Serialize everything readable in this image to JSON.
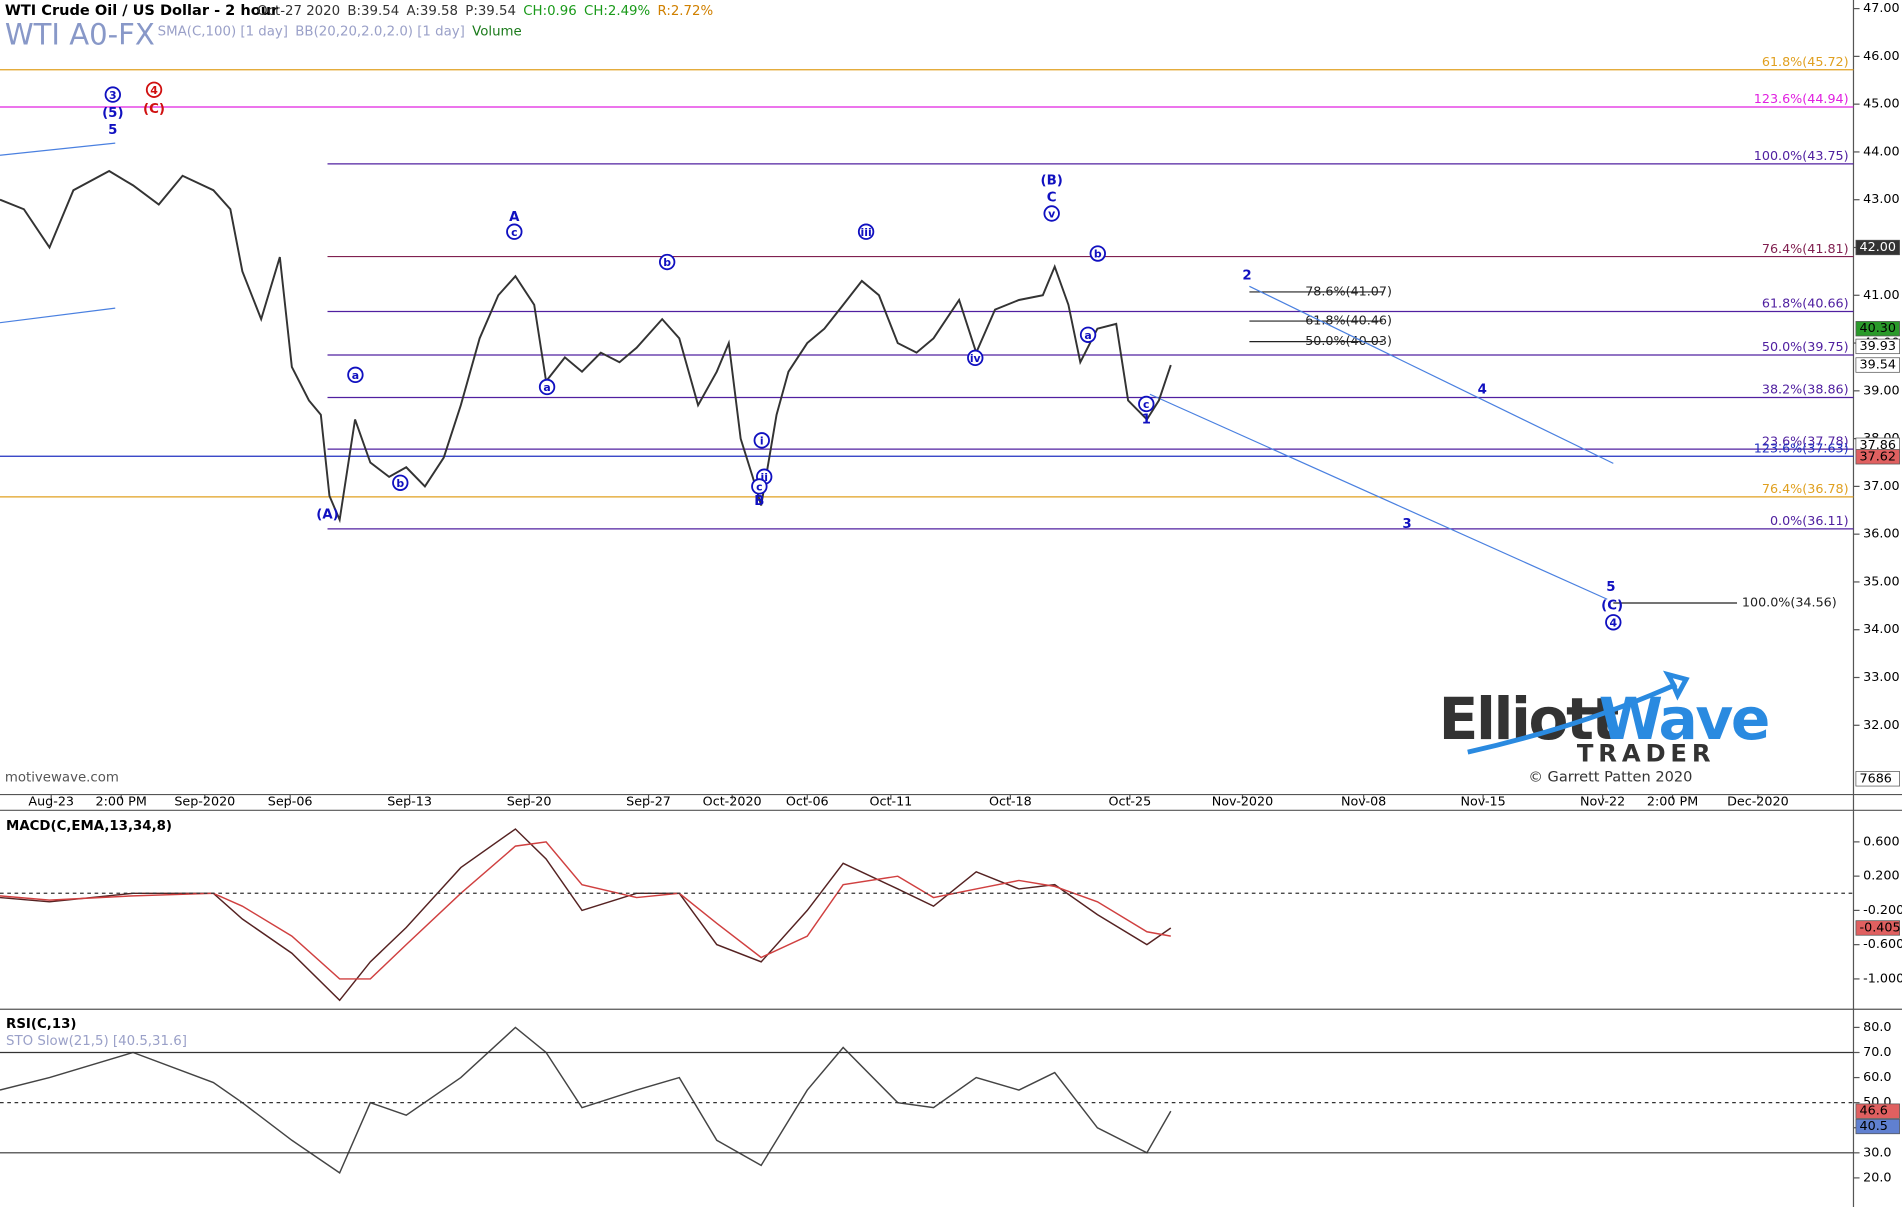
{
  "chart_data": [
    {
      "type": "line",
      "title": "WTI Crude Oil / US Dollar - 2 hour",
      "symbol": "WTI A0-FX",
      "quote": [
        "Oct-27 2020",
        "B:39.54",
        "A:39.58",
        "P:39.54",
        "CH:0.96",
        "CH:2.49%",
        "R:2.72%"
      ],
      "indicators": [
        "SMA(C,100) [1 day]",
        "BB(20,20,2.0,2.0) [1 day]",
        "Volume"
      ],
      "source": "motivewave.com",
      "branding": {
        "name1": "Elliott",
        "name2": "Wave",
        "name3": "TRADER",
        "copyright": "© Garrett Patten 2020"
      },
      "x": [
        233.0,
        234.4,
        235.9,
        237.3,
        239.4,
        240.8,
        242.3,
        243.7,
        245.5,
        246.5,
        247.2,
        248.3,
        249.4,
        250.1,
        251.1,
        251.8,
        252.3,
        252.9,
        253.8,
        254.7,
        255.8,
        256.8,
        257.9,
        259.0,
        260.0,
        261.1,
        262.2,
        263.2,
        264.3,
        265.0,
        266.1,
        267.1,
        268.2,
        269.3,
        270.3,
        271.8,
        272.8,
        273.9,
        275.0,
        275.7,
        276.4,
        277.1,
        277.6,
        278.5,
        279.2,
        280.3,
        281.3,
        282.4,
        283.5,
        284.5,
        285.6,
        286.7,
        287.7,
        289.2,
        290.2,
        291.3,
        292.7,
        294.1,
        294.8,
        295.6,
        296.3,
        297.3,
        298.4,
        299.1,
        300.2,
        300.9,
        301.6
      ],
      "series": [
        {
          "name": "Close",
          "color": "#333333",
          "values": [
            43.0,
            42.8,
            42.0,
            43.2,
            43.6,
            43.3,
            42.9,
            43.5,
            43.2,
            42.8,
            41.5,
            40.5,
            41.8,
            39.5,
            38.8,
            38.5,
            36.8,
            36.3,
            38.4,
            37.5,
            37.2,
            37.4,
            37.0,
            37.6,
            38.7,
            40.1,
            41.0,
            41.4,
            40.8,
            39.2,
            39.7,
            39.4,
            39.8,
            39.6,
            39.9,
            40.5,
            40.1,
            38.7,
            39.4,
            40.0,
            38.0,
            37.2,
            36.6,
            38.5,
            39.4,
            40.0,
            40.3,
            40.8,
            41.3,
            41.0,
            40.0,
            39.8,
            40.1,
            40.9,
            39.8,
            40.7,
            40.9,
            41.0,
            41.6,
            40.8,
            39.6,
            40.3,
            40.4,
            38.8,
            38.4,
            38.8,
            39.54
          ]
        }
      ],
      "xlim": [
        233.0,
        341.6
      ],
      "xticks": [
        {
          "value": 236,
          "label": "Aug-23"
        },
        {
          "value": 240.1,
          "label": "2:00 PM"
        },
        {
          "value": 245,
          "label": "Sep-2020"
        },
        {
          "value": 250,
          "label": "Sep-06"
        },
        {
          "value": 257,
          "label": "Sep-13"
        },
        {
          "value": 264,
          "label": "Sep-20"
        },
        {
          "value": 271,
          "label": "Sep-27"
        },
        {
          "value": 275.9,
          "label": "Oct-2020"
        },
        {
          "value": 280.3,
          "label": "Oct-06"
        },
        {
          "value": 285.2,
          "label": "Oct-11"
        },
        {
          "value": 292.2,
          "label": "Oct-18"
        },
        {
          "value": 299.2,
          "label": "Oct-25"
        },
        {
          "value": 305.8,
          "label": "Nov-2020"
        },
        {
          "value": 312.9,
          "label": "Nov-08"
        },
        {
          "value": 319.9,
          "label": "Nov-15"
        },
        {
          "value": 326.9,
          "label": "Nov-22"
        },
        {
          "value": 331,
          "label": "2:00 PM"
        },
        {
          "value": 336,
          "label": "Dec-2020"
        }
      ],
      "ylim": [
        30.55,
        47.18
      ],
      "yticks": [
        {
          "value": 32,
          "label": "32.00"
        },
        {
          "value": 33,
          "label": "33.00"
        },
        {
          "value": 34,
          "label": "34.00"
        },
        {
          "value": 35,
          "label": "35.00"
        },
        {
          "value": 36,
          "label": "36.00"
        },
        {
          "value": 37,
          "label": "37.00"
        },
        {
          "value": 38,
          "label": "38.00"
        },
        {
          "value": 39,
          "label": "39.00"
        },
        {
          "value": 40,
          "label": "40.00"
        },
        {
          "value": 41,
          "label": "41.00"
        },
        {
          "value": 42,
          "label": "42.00"
        },
        {
          "value": 43,
          "label": "43.00"
        },
        {
          "value": 44,
          "label": "44.00"
        },
        {
          "value": 45,
          "label": "45.00"
        },
        {
          "value": 46,
          "label": "46.00"
        },
        {
          "value": 47,
          "label": "47.00"
        }
      ],
      "fib_levels": [
        {
          "label": "61.8%(45.72)",
          "value": 45.72,
          "color": "#e0a020"
        },
        {
          "label": "123.6%(44.94)",
          "value": 44.94,
          "color": "#e020e0"
        },
        {
          "label": "100.0%(43.75)",
          "value": 43.75,
          "color": "#5020a0"
        },
        {
          "label": "76.4%(41.81)",
          "value": 41.81,
          "color": "#802050"
        },
        {
          "label": "61.8%(40.66)",
          "value": 40.66,
          "color": "#5020a0"
        },
        {
          "label": "50.0%(39.75)",
          "value": 39.75,
          "color": "#5020a0"
        },
        {
          "label": "38.2%(38.86)",
          "value": 38.86,
          "color": "#5020a0"
        },
        {
          "label": "23.6%(37.78)",
          "value": 37.78,
          "color": "#5020a0"
        },
        {
          "label": "123.6%(37.63)",
          "value": 37.63,
          "color": "#2030c0"
        },
        {
          "label": "76.4%(36.78)",
          "value": 36.78,
          "color": "#e0a020"
        },
        {
          "label": "0.0%(36.11)",
          "value": 36.11,
          "color": "#5020a0"
        }
      ],
      "projection_levels": [
        {
          "label": "78.6%(41.07)",
          "value": 41.07,
          "color": "#222222"
        },
        {
          "label": "61.8%(40.46)",
          "value": 40.46,
          "color": "#222222"
        },
        {
          "label": "50.0%(40.03)",
          "value": 40.03,
          "color": "#222222"
        },
        {
          "label": "100.0%(34.56)",
          "value": 34.56,
          "color": "#222222"
        }
      ],
      "price_tags": [
        {
          "value": 42,
          "label": "42.00",
          "color": "#333333"
        },
        {
          "value": 40.3,
          "label": "40.30",
          "color": "#2a9a2a"
        },
        {
          "value": 39.93,
          "label": "39.93",
          "color": "#ffffff"
        },
        {
          "value": 39.54,
          "label": "39.54",
          "color": "#ffffff"
        },
        {
          "value": 37.86,
          "label": "37.86",
          "color": "#ffffff"
        },
        {
          "value": 37.62,
          "label": "37.62",
          "color": "#e06060"
        }
      ],
      "volume_tag": "7686",
      "wave_labels": [
        {
          "text": "3",
          "color": "#1010c0",
          "circled": true
        },
        {
          "text": "(5)",
          "color": "#1010c0",
          "circled": false
        },
        {
          "text": "5",
          "color": "#1010c0",
          "circled": false
        },
        {
          "text": "4",
          "color": "#d01010",
          "circled": true
        },
        {
          "text": "(C)",
          "color": "#d01010",
          "circled": false
        },
        {
          "text": "A",
          "color": "#1010c0",
          "circled": false
        },
        {
          "text": "c",
          "color": "#1010c0",
          "circled": true
        },
        {
          "text": "a",
          "color": "#1010c0",
          "circled": true
        },
        {
          "text": "b",
          "color": "#1010c0",
          "circled": true
        },
        {
          "text": "(A)",
          "color": "#1010c0",
          "circled": false
        },
        {
          "text": "a",
          "color": "#1010c0",
          "circled": true
        },
        {
          "text": "b",
          "color": "#1010c0",
          "circled": true
        },
        {
          "text": "i",
          "color": "#1010c0",
          "circled": true
        },
        {
          "text": "ii",
          "color": "#1010c0",
          "circled": true
        },
        {
          "text": "c",
          "color": "#1010c0",
          "circled": true
        },
        {
          "text": "B",
          "color": "#1010c0",
          "circled": false
        },
        {
          "text": "iii",
          "color": "#1010c0",
          "circled": true
        },
        {
          "text": "iv",
          "color": "#1010c0",
          "circled": true
        },
        {
          "text": "(B)",
          "color": "#1010c0",
          "circled": false
        },
        {
          "text": "C",
          "color": "#1010c0",
          "circled": false
        },
        {
          "text": "v",
          "color": "#1010c0",
          "circled": true
        },
        {
          "text": "b",
          "color": "#1010c0",
          "circled": true
        },
        {
          "text": "a",
          "color": "#1010c0",
          "circled": true
        },
        {
          "text": "c",
          "color": "#1010c0",
          "circled": true
        },
        {
          "text": "1",
          "color": "#1010c0",
          "circled": false
        },
        {
          "text": "2",
          "color": "#1010c0",
          "circled": false
        },
        {
          "text": "3",
          "color": "#1010c0",
          "circled": false
        },
        {
          "text": "4",
          "color": "#1010c0",
          "circled": false
        },
        {
          "text": "5",
          "color": "#1010c0",
          "circled": false
        },
        {
          "text": "(C)",
          "color": "#1010c0",
          "circled": false
        },
        {
          "text": "4",
          "color": "#1010c0",
          "circled": true
        }
      ]
    },
    {
      "type": "line",
      "title": "MACD(C,EMA,13,34,8)",
      "x": [
        233.0,
        235.9,
        240.8,
        245.5,
        247.2,
        250.1,
        252.9,
        254.7,
        256.8,
        260.0,
        263.2,
        265.0,
        267.1,
        270.3,
        272.8,
        275.0,
        277.6,
        280.3,
        282.4,
        285.6,
        287.7,
        290.2,
        292.7,
        294.8,
        297.3,
        300.2,
        301.6
      ],
      "series": [
        {
          "name": "MACD",
          "color": "#552222",
          "values": [
            -0.05,
            -0.1,
            0.0,
            0.0,
            -0.3,
            -0.7,
            -1.25,
            -0.8,
            -0.4,
            0.3,
            0.75,
            0.4,
            -0.2,
            0.0,
            0.0,
            -0.6,
            -0.8,
            -0.2,
            0.35,
            0.05,
            -0.15,
            0.25,
            0.05,
            0.1,
            -0.25,
            -0.6,
            -0.405
          ]
        },
        {
          "name": "Signal",
          "color": "#d04040",
          "values": [
            -0.03,
            -0.08,
            -0.03,
            0.0,
            -0.15,
            -0.5,
            -1.0,
            -1.0,
            -0.6,
            0.0,
            0.55,
            0.6,
            0.1,
            -0.05,
            0.0,
            -0.35,
            -0.75,
            -0.5,
            0.1,
            0.2,
            -0.05,
            0.05,
            0.15,
            0.08,
            -0.1,
            -0.45,
            -0.5
          ]
        }
      ],
      "ylim": [
        -1.326,
        0.94
      ],
      "yticks": [
        {
          "value": 0.6,
          "label": "0.600"
        },
        {
          "value": 0.2,
          "label": "0.200"
        },
        {
          "value": -0.2,
          "label": "-0.200"
        },
        {
          "value": -0.6,
          "label": "-0.600"
        },
        {
          "value": -1.0,
          "label": "-1.000"
        }
      ],
      "tag": {
        "value": -0.405,
        "label": "-0.405",
        "color": "#e06060"
      }
    },
    {
      "type": "line",
      "title": "RSI(C,13)",
      "subtitle": "STO Slow(21,5) [40.5,31.6]",
      "x": [
        233.0,
        235.9,
        240.8,
        245.5,
        247.2,
        250.1,
        252.9,
        254.7,
        256.8,
        260.0,
        263.2,
        265.0,
        267.1,
        270.3,
        272.8,
        275.0,
        277.6,
        280.3,
        282.4,
        285.6,
        287.7,
        290.2,
        292.7,
        294.8,
        297.3,
        300.2,
        301.6
      ],
      "series": [
        {
          "name": "RSI",
          "color": "#444444",
          "values": [
            55,
            60,
            70,
            58,
            50,
            35,
            22,
            50,
            45,
            60,
            80,
            70,
            48,
            55,
            60,
            35,
            25,
            55,
            72,
            50,
            48,
            60,
            55,
            62,
            40,
            30,
            46.6
          ]
        }
      ],
      "ylim": [
        8.4,
        85.3
      ],
      "yticks": [
        {
          "value": 80,
          "label": "80.0"
        },
        {
          "value": 70,
          "label": "70.0"
        },
        {
          "value": 60,
          "label": "60.0"
        },
        {
          "value": 50,
          "label": "50.0"
        },
        {
          "value": 40,
          "label": "40.0"
        },
        {
          "value": 30,
          "label": "30.0"
        },
        {
          "value": 20,
          "label": "20.0"
        }
      ],
      "levels": [
        70,
        50,
        30
      ],
      "tags": [
        {
          "value": 46.6,
          "label": "46.6",
          "color": "#e06060"
        },
        {
          "value": 40.5,
          "label": "40.5",
          "color": "#6080d0"
        }
      ]
    }
  ]
}
